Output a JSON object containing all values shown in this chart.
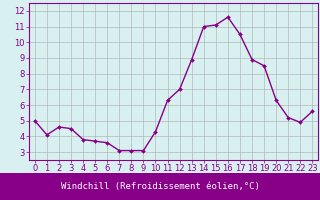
{
  "x": [
    0,
    1,
    2,
    3,
    4,
    5,
    6,
    7,
    8,
    9,
    10,
    11,
    12,
    13,
    14,
    15,
    16,
    17,
    18,
    19,
    20,
    21,
    22,
    23
  ],
  "y": [
    5.0,
    4.1,
    4.6,
    4.5,
    3.8,
    3.7,
    3.6,
    3.1,
    3.1,
    3.1,
    4.3,
    6.3,
    7.0,
    8.9,
    11.0,
    11.1,
    11.6,
    10.5,
    8.9,
    8.5,
    6.3,
    5.2,
    4.9,
    5.6
  ],
  "line_color": "#880088",
  "marker": "D",
  "marker_size": 2.0,
  "line_width": 1.0,
  "bg_color": "#d9f0f0",
  "grid_color": "#aaaaaa",
  "xlabel": "Windchill (Refroidissement éolien,°C)",
  "xlabel_fontsize": 6.5,
  "xlim": [
    -0.5,
    23.5
  ],
  "ylim": [
    2.5,
    12.5
  ],
  "yticks": [
    3,
    4,
    5,
    6,
    7,
    8,
    9,
    10,
    11,
    12
  ],
  "xticks": [
    0,
    1,
    2,
    3,
    4,
    5,
    6,
    7,
    8,
    9,
    10,
    11,
    12,
    13,
    14,
    15,
    16,
    17,
    18,
    19,
    20,
    21,
    22,
    23
  ],
  "tick_fontsize": 6,
  "axis_color": "#880088",
  "label_bar_color": "#880088",
  "label_text_color": "#ffffff"
}
